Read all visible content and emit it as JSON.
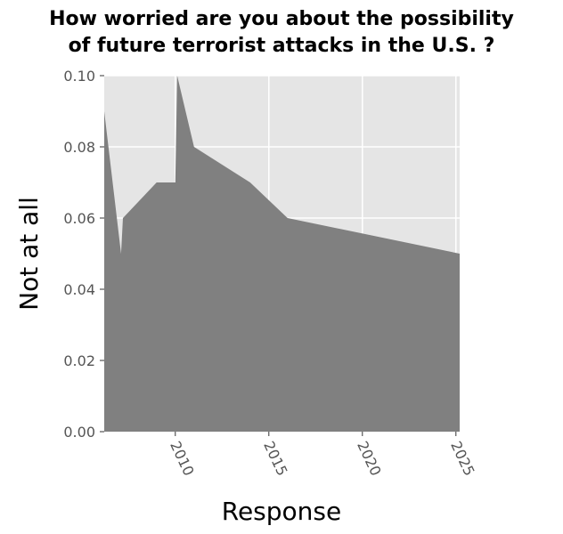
{
  "chart_data": {
    "type": "area",
    "title_lines": [
      "How worried are you about the possibility",
      "of future terrorist attacks in the U.S. ?"
    ],
    "xlabel": "Response",
    "ylabel": "Not at all",
    "xlim": [
      2006.2,
      2025.2
    ],
    "ylim": [
      0,
      0.1
    ],
    "x_ticks": [
      2010,
      2015,
      2020,
      2025
    ],
    "y_ticks": [
      0.0,
      0.02,
      0.04,
      0.06,
      0.08,
      0.1
    ],
    "y_tick_labels": [
      "0.00",
      "0.02",
      "0.04",
      "0.06",
      "0.08",
      "0.10"
    ],
    "x_tick_labels": [
      "2010",
      "2015",
      "2020",
      "2025"
    ],
    "grid": true,
    "colors": {
      "fill": "#808080",
      "panel": "#e5e5e5",
      "grid": "#ffffff",
      "tick_text": "#555555"
    },
    "series": [
      {
        "points": [
          [
            2006.2,
            0.09
          ],
          [
            2007.1,
            0.05
          ],
          [
            2007.2,
            0.06
          ],
          [
            2009.0,
            0.07
          ],
          [
            2010.0,
            0.07
          ],
          [
            2010.1,
            0.1
          ],
          [
            2011.0,
            0.08
          ],
          [
            2014.0,
            0.07
          ],
          [
            2016.0,
            0.06
          ],
          [
            2025.2,
            0.05
          ]
        ]
      }
    ]
  }
}
